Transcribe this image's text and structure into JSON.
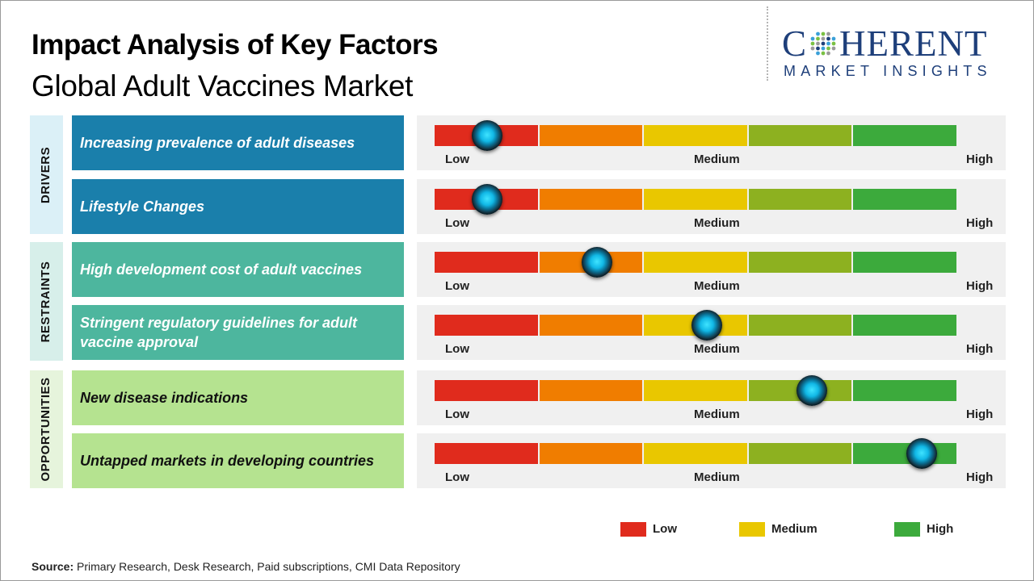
{
  "header": {
    "title": "Impact Analysis of Key Factors",
    "subtitle": "Global Adult Vaccines Market"
  },
  "logo": {
    "name_left": "C",
    "name_right": "HERENT",
    "tagline": "MARKET INSIGHTS",
    "mark_colors": [
      "#1e3f7a",
      "#3aa0d8",
      "#7ac043",
      "#9a9a9a"
    ]
  },
  "chart_data": {
    "type": "gauge",
    "scale_labels": {
      "low": "Low",
      "medium": "Medium",
      "high": "High"
    },
    "scale_levels": [
      "Low",
      "Medium",
      "High"
    ],
    "segment_colors": [
      "#e02b1d",
      "#f07d00",
      "#e9c700",
      "#8db120",
      "#3caa3c"
    ],
    "categories": [
      {
        "name": "DRIVERS",
        "band_color": "#dbf0f7",
        "box_color": "#1a7fab",
        "text_color": "#ffffff",
        "factors": [
          {
            "label": "Increasing prevalence  of adult diseases",
            "impact": 0.1
          },
          {
            "label": "Lifestyle Changes",
            "impact": 0.1
          }
        ]
      },
      {
        "name": "RESTRAINTS",
        "band_color": "#d7efea",
        "box_color": "#4db69e",
        "text_color": "#ffffff",
        "factors": [
          {
            "label": "High development  cost of adult vaccines",
            "impact": 0.31
          },
          {
            "label": "Stringent regulatory  guidelines for adult vaccine approval",
            "impact": 0.52
          }
        ]
      },
      {
        "name": "OPPORTUNITIES",
        "band_color": "#e6f4dc",
        "box_color": "#b5e390",
        "text_color": "#111111",
        "factors": [
          {
            "label": "New disease  indications",
            "impact": 0.72
          },
          {
            "label": "Untapped markets in developing countries",
            "impact": 0.93
          }
        ]
      }
    ],
    "legend": [
      {
        "label": "Low",
        "color": "#e02b1d"
      },
      {
        "label": "Medium",
        "color": "#e9c700"
      },
      {
        "label": "High",
        "color": "#3caa3c"
      }
    ]
  },
  "footer": {
    "source_label": "Source:",
    "source_text": " Primary Research, Desk Research, Paid subscriptions, CMI Data Repository"
  }
}
